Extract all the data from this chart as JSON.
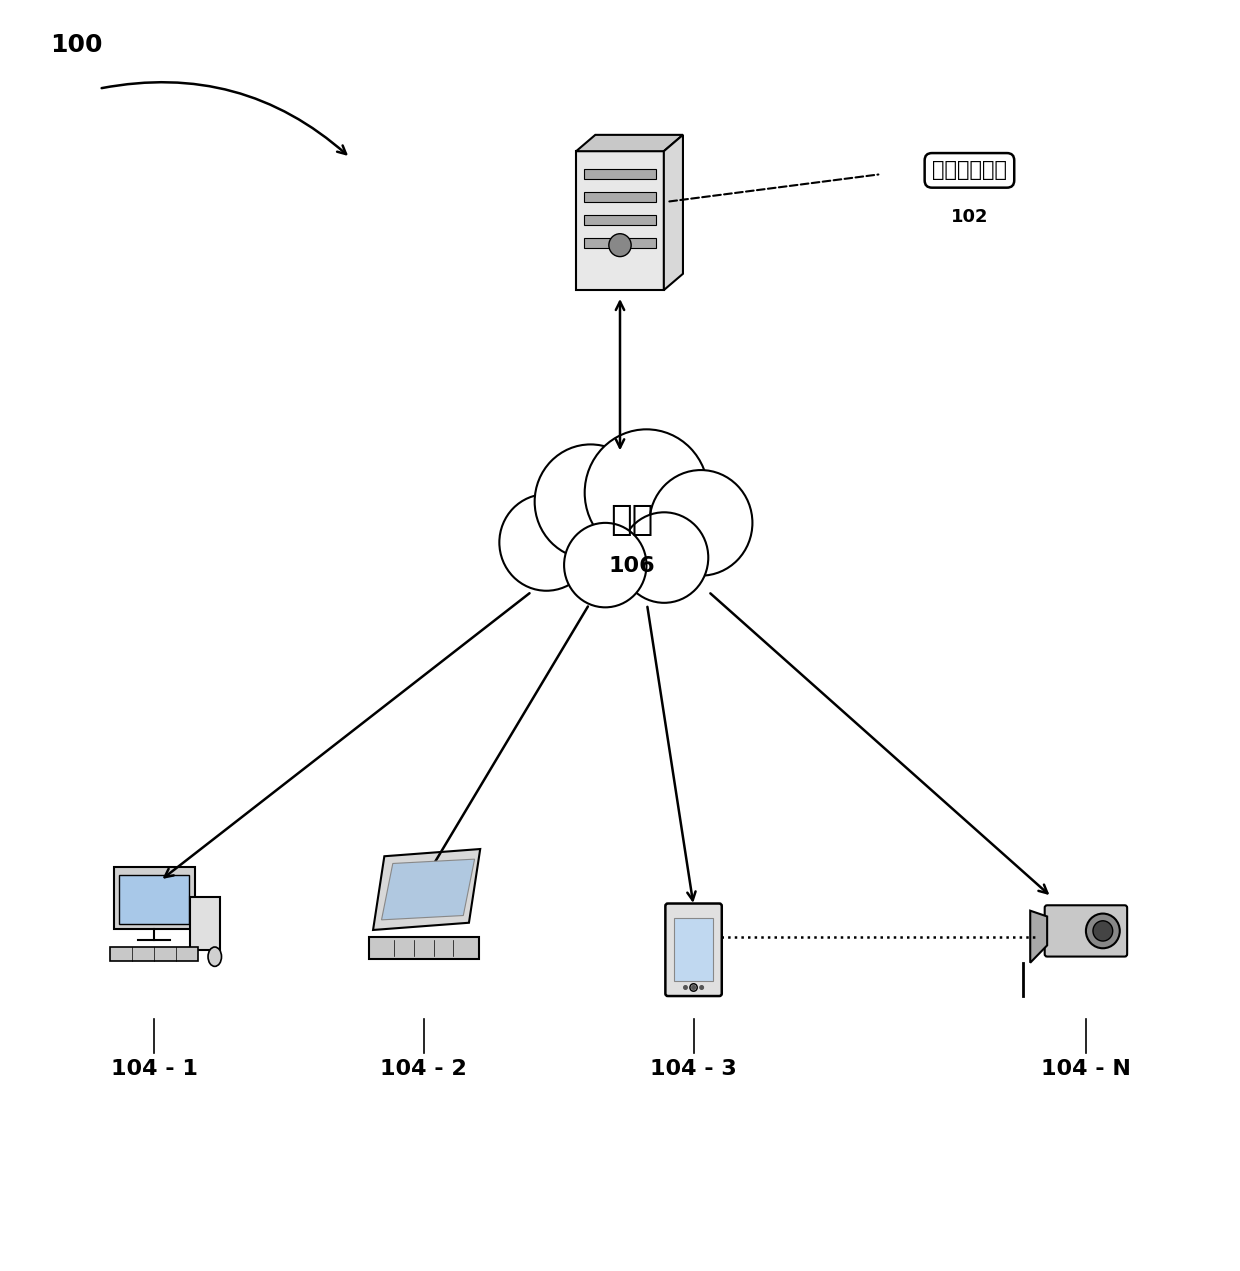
{
  "background_color": "#ffffff",
  "fig_width": 12.4,
  "fig_height": 12.71,
  "label_100": "100",
  "label_102": "102",
  "label_106": "106",
  "label_network_cn": "网络",
  "label_system_cn": "图像处理系统",
  "label_104_1": "104 - 1",
  "label_104_2": "104 - 2",
  "label_104_3": "104 - 3",
  "label_104_N": "104 - N",
  "text_color": "#000000"
}
